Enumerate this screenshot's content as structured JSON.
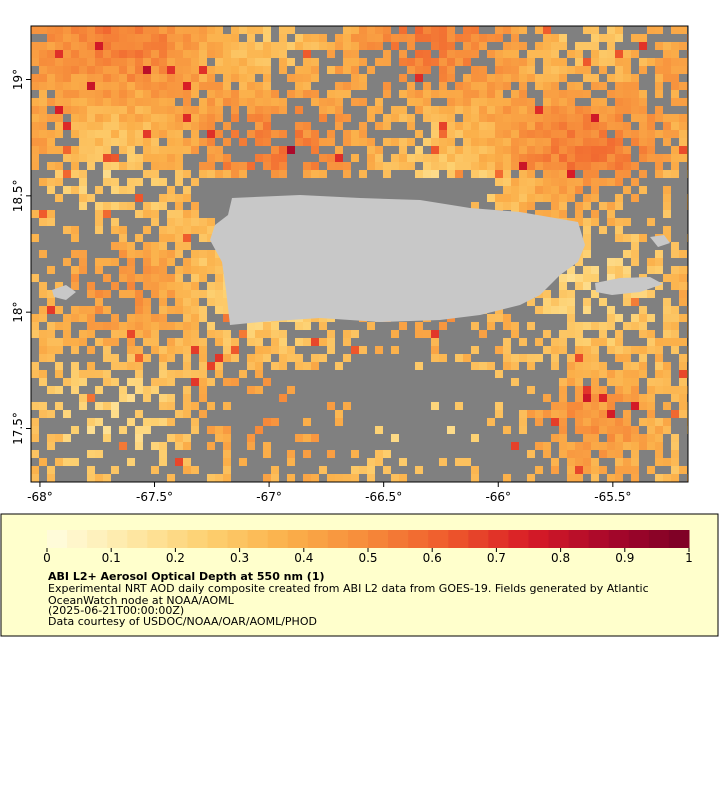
{
  "map": {
    "xlim": [
      -68.039,
      -65.172
    ],
    "ylim": [
      17.27,
      19.23
    ],
    "xticks": [
      {
        "value": -68,
        "label": "-68°"
      },
      {
        "value": -67.5,
        "label": "-67.5°"
      },
      {
        "value": -67,
        "label": "-67°"
      },
      {
        "value": -66.5,
        "label": "-66.5°"
      },
      {
        "value": -66,
        "label": "-66°"
      },
      {
        "value": -65.5,
        "label": "-65.5°"
      }
    ],
    "yticks": [
      {
        "value": 17.5,
        "label": "17.5°"
      },
      {
        "value": 18,
        "label": "18°"
      },
      {
        "value": 18.5,
        "label": "18.5°"
      },
      {
        "value": 19,
        "label": "19°"
      }
    ],
    "water_color": "#808080",
    "land_color": "#c8c8c8"
  },
  "colorbar": {
    "lim": [
      0,
      1
    ],
    "ticks": [
      0,
      0.1,
      0.2,
      0.3,
      0.4,
      0.5,
      0.6,
      0.7,
      0.8,
      0.9,
      1
    ],
    "colormap": [
      "#fffde0",
      "#fee9a8",
      "#fdd070",
      "#fbb04a",
      "#f68a3a",
      "#ef5a2c",
      "#d81c26",
      "#a8072b",
      "#7a0025"
    ]
  },
  "caption": {
    "title": "ABI L2+ Aerosol Optical Depth at 550 nm (1)",
    "lines": [
      "Experimental NRT AOD daily composite created from ABI L2 data from GOES-19. Fields generated by Atlantic",
      "OceanWatch node at NOAA/AOML",
      "(2025-06-21T00:00:00Z)",
      "Data courtesy of USDOC/NOAA/OAR/AOML/PHOD"
    ]
  }
}
